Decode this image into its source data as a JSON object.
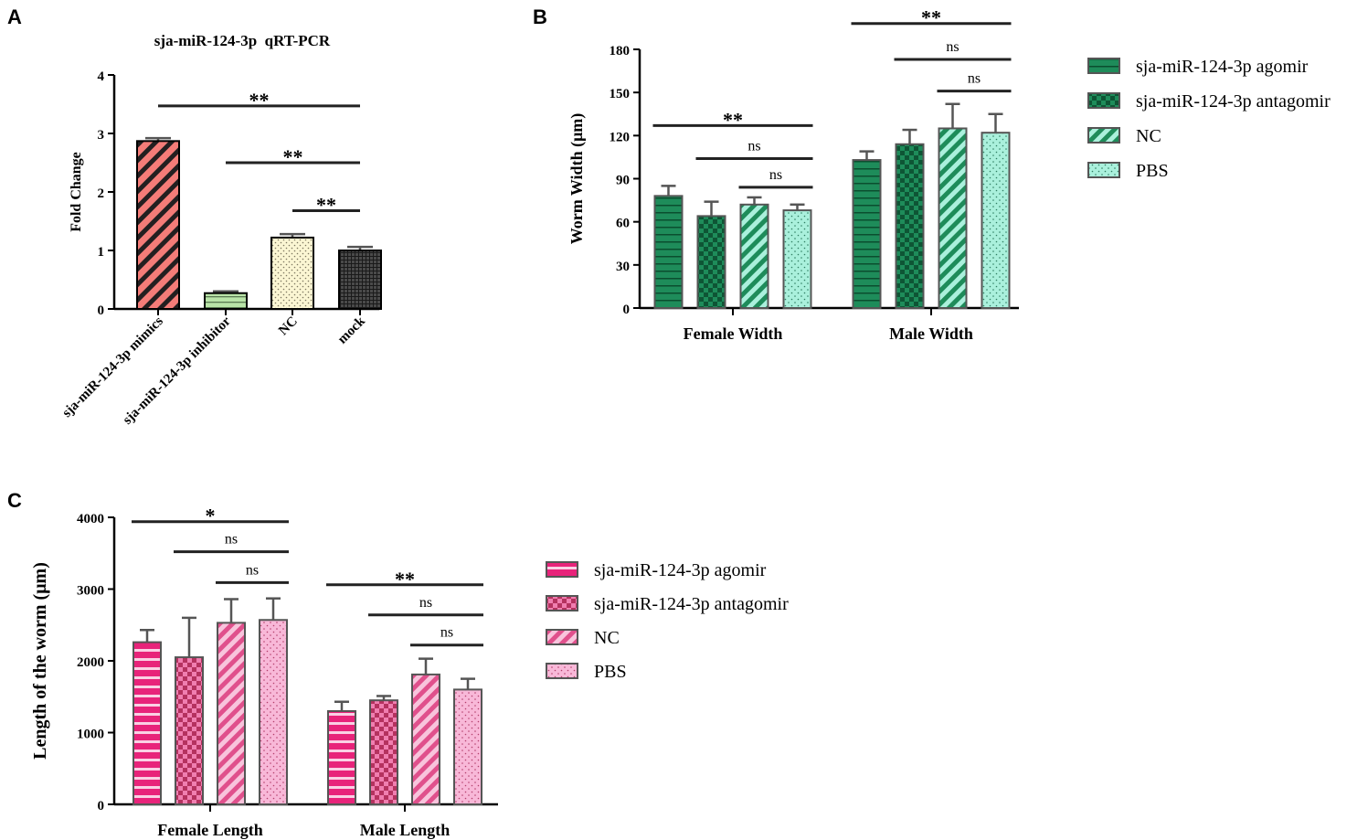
{
  "panel_labels": [
    "A",
    "B",
    "C"
  ],
  "colors": {
    "axis": "#000000",
    "A_mimics": "#f47c78",
    "A_inhibitor": "#b9e4a8",
    "A_nc": "#fbf6d3",
    "A_mock": "#4a4a4a",
    "B_series": "#1e8c5a",
    "B_light": "#aaf0dc",
    "C_series": "#e8237a",
    "C_light": "#f8b8d8"
  },
  "chart_data": [
    {
      "panel": "A",
      "type": "bar",
      "title": "sja-miR-124-3p  qRT-PCR",
      "xlabel": "",
      "ylabel": "Fold Change",
      "ylim": [
        0,
        4
      ],
      "yticks": [
        "0",
        "1",
        "2",
        "3",
        "4"
      ],
      "categories": [
        "sja-miR-124-3p mimics",
        "sja-miR-124-3p inhibitor",
        "NC",
        "mock"
      ],
      "values": [
        2.87,
        0.27,
        1.22,
        1.0
      ],
      "errors": [
        0.05,
        0.03,
        0.06,
        0.06
      ],
      "significance": [
        {
          "from": 0,
          "to": 3,
          "label": "**",
          "y": 3.47
        },
        {
          "from": 1,
          "to": 3,
          "label": "**",
          "y": 2.5
        },
        {
          "from": 2,
          "to": 3,
          "label": "**",
          "y": 1.68
        }
      ]
    },
    {
      "panel": "B",
      "type": "bar",
      "title": "",
      "xlabel": "",
      "ylabel": "Worm Width (μm)",
      "ylim": [
        0,
        180
      ],
      "yticks": [
        "0",
        "30",
        "60",
        "90",
        "120",
        "150",
        "180"
      ],
      "categories": [
        "Female Width",
        "Male Width"
      ],
      "series": [
        {
          "name": "sja-miR-124-3p agomir",
          "values": [
            78,
            103
          ],
          "errors": [
            7,
            6
          ]
        },
        {
          "name": "sja-miR-124-3p antagomir",
          "values": [
            64,
            114
          ],
          "errors": [
            10,
            10
          ]
        },
        {
          "name": "NC",
          "values": [
            72,
            125
          ],
          "errors": [
            5,
            17
          ]
        },
        {
          "name": "PBS",
          "values": [
            68,
            122
          ],
          "errors": [
            4,
            13
          ]
        }
      ],
      "legend_position": "right",
      "significance": [
        {
          "group": 0,
          "from": 0,
          "to": 3,
          "label": "**",
          "y": 127
        },
        {
          "group": 0,
          "from": 1,
          "to": 3,
          "label": "ns",
          "y": 104
        },
        {
          "group": 0,
          "from": 2,
          "to": 3,
          "label": "ns",
          "y": 84
        },
        {
          "group": 1,
          "from": 0,
          "to": 3,
          "label": "**",
          "y": 198
        },
        {
          "group": 1,
          "from": 1,
          "to": 3,
          "label": "ns",
          "y": 173
        },
        {
          "group": 1,
          "from": 2,
          "to": 3,
          "label": "ns",
          "y": 151
        }
      ]
    },
    {
      "panel": "C",
      "type": "bar",
      "title": "",
      "xlabel": "",
      "ylabel": "Length of the worm (μm)",
      "ylim": [
        0,
        4000
      ],
      "yticks": [
        "0",
        "1000",
        "2000",
        "3000",
        "4000"
      ],
      "categories": [
        "Female Length",
        "Male Length"
      ],
      "series": [
        {
          "name": "sja-miR-124-3p agomir",
          "values": [
            2260,
            1300
          ],
          "errors": [
            170,
            130
          ]
        },
        {
          "name": "sja-miR-124-3p antagomir",
          "values": [
            2050,
            1450
          ],
          "errors": [
            550,
            60
          ]
        },
        {
          "name": "NC",
          "values": [
            2530,
            1810
          ],
          "errors": [
            330,
            220
          ]
        },
        {
          "name": "PBS",
          "values": [
            2570,
            1600
          ],
          "errors": [
            300,
            150
          ]
        }
      ],
      "legend_position": "right",
      "significance": [
        {
          "group": 0,
          "from": 0,
          "to": 3,
          "label": "*",
          "y": 3940
        },
        {
          "group": 0,
          "from": 1,
          "to": 3,
          "label": "ns",
          "y": 3520
        },
        {
          "group": 0,
          "from": 2,
          "to": 3,
          "label": "ns",
          "y": 3090
        },
        {
          "group": 1,
          "from": 0,
          "to": 3,
          "label": "**",
          "y": 3060
        },
        {
          "group": 1,
          "from": 1,
          "to": 3,
          "label": "ns",
          "y": 2640
        },
        {
          "group": 1,
          "from": 2,
          "to": 3,
          "label": "ns",
          "y": 2220
        }
      ]
    }
  ]
}
